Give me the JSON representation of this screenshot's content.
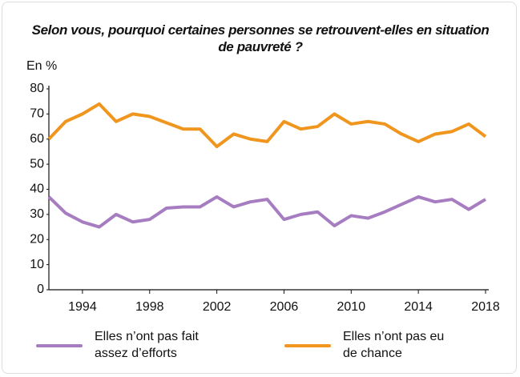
{
  "chart_data": {
    "type": "line",
    "title": "Selon vous, pourquoi certaines personnes se retrouvent-elles en situation de pauvreté ?",
    "y_label": "En %",
    "x": [
      1992,
      1993,
      1994,
      1995,
      1996,
      1997,
      1998,
      1999,
      2000,
      2001,
      2002,
      2003,
      2004,
      2005,
      2006,
      2007,
      2008,
      2009,
      2010,
      2011,
      2012,
      2013,
      2014,
      2015,
      2016,
      2017,
      2018
    ],
    "series": [
      {
        "name": "Elles n’ont pas fait assez d’efforts",
        "color": "#a77dc2",
        "values": [
          37,
          30.5,
          27,
          25,
          30,
          27,
          28,
          32.5,
          33,
          33,
          37,
          33,
          35,
          36,
          28,
          30,
          31,
          25.5,
          29.5,
          28.5,
          31,
          34,
          37,
          35,
          36,
          32,
          36
        ]
      },
      {
        "name": "Elles n’ont pas eu de chance",
        "color": "#f0961e",
        "values": [
          60,
          67,
          70,
          74,
          67,
          70,
          69,
          66.5,
          64,
          64,
          57,
          62,
          60,
          59,
          67,
          64,
          65,
          70,
          66,
          67,
          66,
          62,
          59,
          62,
          63,
          66,
          61
        ]
      }
    ],
    "xlim": [
      1992,
      2018
    ],
    "xticks": [
      1994,
      1998,
      2002,
      2006,
      2010,
      2014,
      2018
    ],
    "ylim": [
      0,
      80
    ],
    "yticks": [
      0,
      10,
      20,
      30,
      40,
      50,
      60,
      70,
      80
    ]
  }
}
